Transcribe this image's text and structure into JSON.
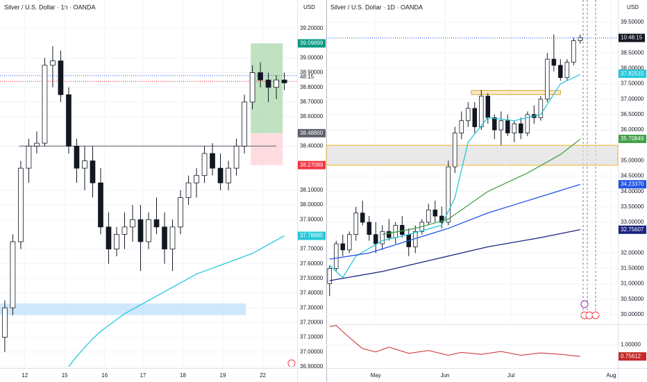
{
  "chart_data": [
    {
      "type": "candlestick",
      "title": "Silver / U.S. Dollar · 1h · OANDA",
      "axis_label": "USD",
      "countdown": "48:15",
      "xlim": [
        -0.6,
        36.6
      ],
      "ylim": [
        36.89,
        39.394
      ],
      "xticks": [
        {
          "value": 2.5,
          "label": "12"
        },
        {
          "value": 7.5,
          "label": "15"
        },
        {
          "value": 12.5,
          "label": "16"
        },
        {
          "value": 17.3,
          "label": "17"
        },
        {
          "value": 22.3,
          "label": "18"
        },
        {
          "value": 27.3,
          "label": "19"
        },
        {
          "value": 32.3,
          "label": "22"
        }
      ],
      "yticks": [
        {
          "value": 39.2,
          "label": "39.20000"
        },
        {
          "value": 39.0,
          "label": "39.00000"
        },
        {
          "value": 38.9,
          "label": "38.90000"
        },
        {
          "value": 38.8,
          "label": "38.80000"
        },
        {
          "value": 38.7,
          "label": "38.70000"
        },
        {
          "value": 38.6,
          "label": "38.60000"
        },
        {
          "value": 38.4,
          "label": "38.40000"
        },
        {
          "value": 38.1,
          "label": "38.10000"
        },
        {
          "value": 38.0,
          "label": "38.00000"
        },
        {
          "value": 37.9,
          "label": "37.90000"
        },
        {
          "value": 37.7,
          "label": "37.70000"
        },
        {
          "value": 37.6,
          "label": "37.60000"
        },
        {
          "value": 37.5,
          "label": "37.50000"
        },
        {
          "value": 37.4,
          "label": "37.40000"
        },
        {
          "value": 37.3,
          "label": "37.30000"
        },
        {
          "value": 37.2,
          "label": "37.20000"
        },
        {
          "value": 37.1,
          "label": "37.10000"
        },
        {
          "value": 37.0,
          "label": "37.00000"
        },
        {
          "value": 36.9,
          "label": "36.90000"
        }
      ],
      "candles": [
        [
          37.1,
          37.35,
          37.0,
          37.3
        ],
        [
          37.3,
          37.8,
          37.25,
          37.75
        ],
        [
          37.75,
          38.3,
          37.7,
          38.25
        ],
        [
          38.25,
          38.45,
          38.15,
          38.4
        ],
        [
          38.4,
          38.5,
          38.35,
          38.42
        ],
        [
          38.42,
          39.0,
          38.4,
          38.95
        ],
        [
          38.95,
          39.08,
          38.8,
          38.98
        ],
        [
          38.98,
          39.05,
          38.7,
          38.75
        ],
        [
          38.75,
          38.8,
          38.35,
          38.4
        ],
        [
          38.4,
          38.45,
          38.15,
          38.25
        ],
        [
          38.25,
          38.4,
          38.1,
          38.3
        ],
        [
          38.3,
          38.4,
          38.05,
          38.15
        ],
        [
          38.15,
          38.25,
          37.8,
          37.85
        ],
        [
          37.85,
          37.95,
          37.6,
          37.7
        ],
        [
          37.7,
          37.85,
          37.65,
          37.8
        ],
        [
          37.8,
          37.95,
          37.7,
          37.85
        ],
        [
          37.85,
          38.0,
          37.75,
          37.9
        ],
        [
          37.9,
          38.0,
          37.55,
          37.75
        ],
        [
          37.75,
          37.95,
          37.7,
          37.9
        ],
        [
          37.9,
          38.05,
          37.8,
          37.85
        ],
        [
          37.85,
          37.95,
          37.6,
          37.7
        ],
        [
          37.7,
          37.9,
          37.55,
          37.85
        ],
        [
          37.85,
          38.1,
          37.8,
          38.05
        ],
        [
          38.05,
          38.2,
          38.0,
          38.15
        ],
        [
          38.15,
          38.25,
          38.05,
          38.2
        ],
        [
          38.2,
          38.4,
          38.15,
          38.35
        ],
        [
          38.35,
          38.42,
          38.2,
          38.25
        ],
        [
          38.25,
          38.35,
          38.1,
          38.15
        ],
        [
          38.15,
          38.3,
          38.1,
          38.25
        ],
        [
          38.25,
          38.45,
          38.2,
          38.4
        ],
        [
          38.4,
          38.75,
          38.35,
          38.7
        ],
        [
          38.7,
          38.95,
          38.65,
          38.9
        ],
        [
          38.9,
          38.97,
          38.8,
          38.85
        ],
        [
          38.85,
          38.9,
          38.7,
          38.8
        ],
        [
          38.8,
          38.88,
          38.72,
          38.85
        ],
        [
          38.85,
          38.9,
          38.78,
          38.83
        ]
      ],
      "lines": [
        {
          "color": "#26c6da",
          "x": [
            8,
            9,
            10,
            11,
            12,
            13,
            14,
            15,
            16,
            17,
            18,
            19,
            20,
            21,
            22,
            23,
            24,
            25,
            26,
            27,
            28,
            29,
            30,
            31,
            32,
            33,
            34,
            35
          ],
          "values": [
            36.9,
            36.97,
            37.03,
            37.09,
            37.14,
            37.18,
            37.22,
            37.26,
            37.29,
            37.32,
            37.35,
            37.38,
            37.41,
            37.44,
            37.47,
            37.5,
            37.53,
            37.55,
            37.57,
            37.59,
            37.61,
            37.63,
            37.65,
            37.67,
            37.7,
            37.73,
            37.76,
            37.79
          ]
        }
      ],
      "zones": [
        {
          "from": 37.33,
          "to": 37.25,
          "x": [
            -0.6,
            30.2
          ],
          "color": "#bbdefb"
        },
        {
          "from": 39.09899,
          "to": 38.488,
          "x": [
            30.8,
            34.8
          ],
          "color": "#a5d6a7"
        },
        {
          "from": 38.488,
          "to": 38.27089,
          "x": [
            30.8,
            34.8
          ],
          "color": "#ffcdd2"
        }
      ],
      "levels": [
        {
          "value": 38.4,
          "x": [
            1.8,
            34.0
          ],
          "color": "#787b86",
          "dash": "none"
        },
        {
          "value": 38.88,
          "x": [
            -0.6,
            36.6
          ],
          "color": "#2962ff",
          "dash": "1 2"
        },
        {
          "value": 38.84,
          "x": [
            -0.6,
            36.6
          ],
          "color": "#f23645",
          "dash": "1 2"
        }
      ],
      "price_labels": [
        {
          "value": 39.09899,
          "label": "39.09899",
          "color": "#089981"
        },
        {
          "value": 38.488,
          "label": "38.48800",
          "color": "#5d606b"
        },
        {
          "value": 38.27089,
          "label": "38.27089",
          "color": "#f23645"
        },
        {
          "value": 37.78985,
          "label": "37.78985",
          "color": "#26c6da"
        }
      ]
    },
    {
      "type": "candlestick",
      "title": "Silver / U.S. Dollar · 1D · OANDA",
      "axis_label": "USD",
      "countdown": "10:48:15",
      "countdown_level": 38.99,
      "xlim": [
        -0.5,
        43.7
      ],
      "ylim": [
        29.726,
        40.222
      ],
      "xticks": [
        {
          "value": 7,
          "label": "May"
        },
        {
          "value": 17.5,
          "label": "Jun"
        },
        {
          "value": 27.5,
          "label": "Jul"
        },
        {
          "value": 42.7,
          "label": "Aug"
        }
      ],
      "yticks": [
        {
          "value": 39.5,
          "label": "39.50000"
        },
        {
          "value": 38.5,
          "label": "38.50000"
        },
        {
          "value": 38.0,
          "label": "38.00000"
        },
        {
          "value": 37.5,
          "label": "37.50000"
        },
        {
          "value": 37.0,
          "label": "37.00000"
        },
        {
          "value": 36.5,
          "label": "36.50000"
        },
        {
          "value": 36.0,
          "label": "36.00000"
        },
        {
          "value": 35.0,
          "label": "35.00000"
        },
        {
          "value": 34.5,
          "label": "34.50000"
        },
        {
          "value": 34.0,
          "label": "34.00000"
        },
        {
          "value": 33.5,
          "label": "33.50000"
        },
        {
          "value": 33.0,
          "label": "33.00000"
        },
        {
          "value": 32.0,
          "label": "32.00000"
        },
        {
          "value": 31.5,
          "label": "31.50000"
        },
        {
          "value": 31.0,
          "label": "31.00000"
        },
        {
          "value": 30.5,
          "label": "30.50000"
        },
        {
          "value": 30.0,
          "label": "30.00000"
        }
      ],
      "candles": [
        [
          31.0,
          31.6,
          30.6,
          31.5
        ],
        [
          31.5,
          32.4,
          31.4,
          32.3
        ],
        [
          32.3,
          32.6,
          31.9,
          32.1
        ],
        [
          32.1,
          32.7,
          32.0,
          32.6
        ],
        [
          32.6,
          33.5,
          32.4,
          33.3
        ],
        [
          33.3,
          33.7,
          32.9,
          33.0
        ],
        [
          33.0,
          33.2,
          32.4,
          32.6
        ],
        [
          32.6,
          33.0,
          32.0,
          32.3
        ],
        [
          32.3,
          32.9,
          32.1,
          32.7
        ],
        [
          32.7,
          33.1,
          32.4,
          32.5
        ],
        [
          32.5,
          33.0,
          32.3,
          32.9
        ],
        [
          32.9,
          33.2,
          32.5,
          32.6
        ],
        [
          32.6,
          32.8,
          31.9,
          32.2
        ],
        [
          32.2,
          32.9,
          32.0,
          32.7
        ],
        [
          32.7,
          33.1,
          32.6,
          33.0
        ],
        [
          33.0,
          33.6,
          32.9,
          33.4
        ],
        [
          33.4,
          33.7,
          33.0,
          33.2
        ],
        [
          33.2,
          33.5,
          32.8,
          33.0
        ],
        [
          33.0,
          35.0,
          32.9,
          34.8
        ],
        [
          34.8,
          36.1,
          34.6,
          35.9
        ],
        [
          35.9,
          36.6,
          35.7,
          36.3
        ],
        [
          36.3,
          36.9,
          36.1,
          36.7
        ],
        [
          36.7,
          36.9,
          35.9,
          36.1
        ],
        [
          36.1,
          37.3,
          36.0,
          37.1
        ],
        [
          37.1,
          37.2,
          36.2,
          36.4
        ],
        [
          36.4,
          36.5,
          35.7,
          36.0
        ],
        [
          36.0,
          36.6,
          35.5,
          36.3
        ],
        [
          36.3,
          36.5,
          35.8,
          35.9
        ],
        [
          35.9,
          36.3,
          35.6,
          36.2
        ],
        [
          36.2,
          36.4,
          35.7,
          35.9
        ],
        [
          35.9,
          36.6,
          35.8,
          36.5
        ],
        [
          36.5,
          36.8,
          36.2,
          36.4
        ],
        [
          36.4,
          37.1,
          36.3,
          37.0
        ],
        [
          37.0,
          38.5,
          36.9,
          38.3
        ],
        [
          38.3,
          39.1,
          37.9,
          38.1
        ],
        [
          38.1,
          38.3,
          37.6,
          37.7
        ],
        [
          37.7,
          38.3,
          37.6,
          38.2
        ],
        [
          38.2,
          39.0,
          38.1,
          38.9
        ],
        [
          38.9,
          39.1,
          38.8,
          39.0
        ]
      ],
      "lines": [
        {
          "color": "#26c6da",
          "x": [
            0,
            2,
            4,
            8,
            12,
            17,
            19,
            21,
            24,
            28,
            32,
            35,
            38
          ],
          "values": [
            31.6,
            31.2,
            31.9,
            32.4,
            32.6,
            32.9,
            33.8,
            35.6,
            36.4,
            36.3,
            36.5,
            37.5,
            37.8
          ]
        },
        {
          "color": "#43a047",
          "x": [
            8,
            13,
            18,
            24,
            30,
            35,
            38
          ],
          "values": [
            32.6,
            32.8,
            33.1,
            34.0,
            34.6,
            35.2,
            35.7
          ]
        },
        {
          "color": "#1e53e5",
          "x": [
            0,
            6,
            12,
            18,
            24,
            30,
            38
          ],
          "values": [
            31.8,
            32.0,
            32.4,
            32.8,
            33.3,
            33.7,
            34.23
          ]
        },
        {
          "color": "#1a237e",
          "x": [
            0,
            8,
            16,
            24,
            32,
            38
          ],
          "values": [
            31.1,
            31.4,
            31.8,
            32.2,
            32.5,
            32.76
          ]
        }
      ],
      "zones": [
        {
          "from": 35.5,
          "to": 34.85,
          "x": [
            -0.5,
            43.7
          ],
          "color": "#e0e0e0",
          "border": "#f0b429"
        },
        {
          "from": 37.28,
          "to": 37.15,
          "x": [
            21.5,
            35.0
          ],
          "color": "#ffe0b2",
          "border": "#c9a227"
        }
      ],
      "levels": [
        {
          "value": 38.99,
          "x": [
            -0.5,
            43.7
          ],
          "color": "#2962ff",
          "dash": "1 2"
        }
      ],
      "price_labels": [
        {
          "value": 37.82515,
          "label": "37.82515",
          "color": "#26c6da"
        },
        {
          "value": 35.70849,
          "label": "35.70849",
          "color": "#43a047"
        },
        {
          "value": 34.2337,
          "label": "34.23370",
          "color": "#1e53e5"
        },
        {
          "value": 32.75607,
          "label": "32.75607",
          "color": "#1a237e"
        }
      ],
      "indicator": {
        "color": "#c62828",
        "ylim": [
          0.513,
          1.41
        ],
        "yticks": [
          {
            "value": 1,
            "label": "1.00000"
          }
        ],
        "x": [
          0,
          1,
          3,
          5,
          7,
          9,
          12,
          15,
          18,
          20,
          23,
          26,
          29,
          32,
          35,
          38
        ],
        "values": [
          1.38,
          1.4,
          1.15,
          0.92,
          0.85,
          0.95,
          0.82,
          0.88,
          0.78,
          0.84,
          0.8,
          0.86,
          0.78,
          0.83,
          0.8,
          0.756
        ],
        "price_label": {
          "value": 0.75612,
          "label": "0.75612"
        }
      }
    }
  ]
}
